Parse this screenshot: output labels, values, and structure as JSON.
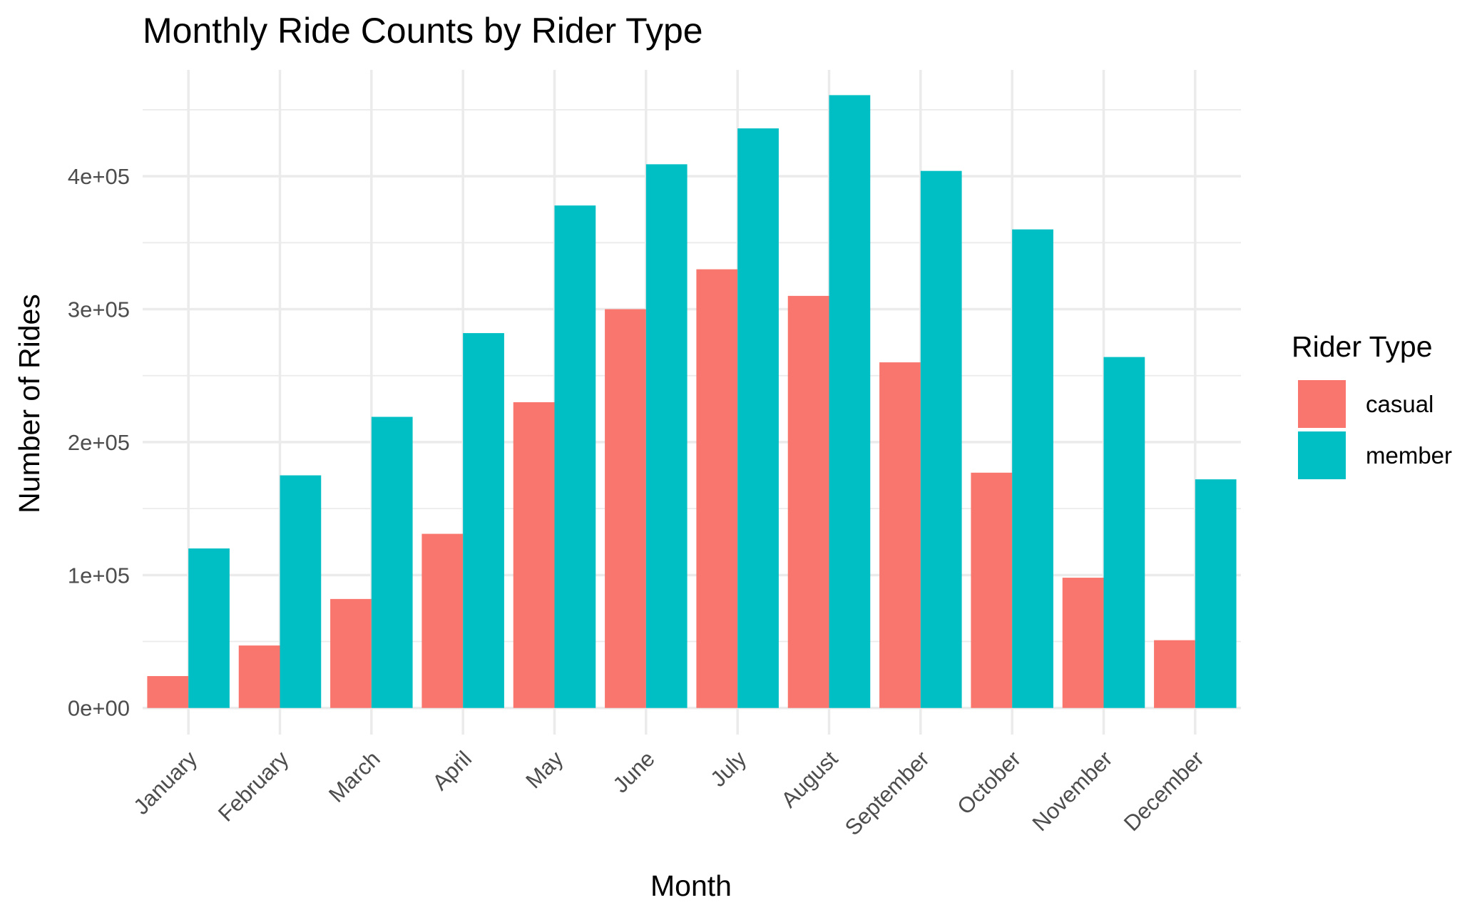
{
  "chart_data": {
    "type": "bar",
    "title": "Monthly Ride Counts by Rider Type",
    "xlabel": "Month",
    "ylabel": "Number of Rides",
    "categories": [
      "January",
      "February",
      "March",
      "April",
      "May",
      "June",
      "July",
      "August",
      "September",
      "October",
      "November",
      "December"
    ],
    "series": [
      {
        "name": "casual",
        "color": "#F8766D",
        "values": [
          24000,
          47000,
          82000,
          131000,
          230000,
          300000,
          330000,
          310000,
          260000,
          177000,
          98000,
          51000
        ]
      },
      {
        "name": "member",
        "color": "#00BFC4",
        "values": [
          120000,
          175000,
          219000,
          282000,
          378000,
          409000,
          436000,
          461000,
          404000,
          360000,
          264000,
          172000
        ]
      }
    ],
    "ylim": [
      -20000,
      480000
    ],
    "yticks": [
      0,
      100000,
      200000,
      300000,
      400000
    ],
    "ytick_labels": [
      "0e+00",
      "1e+05",
      "2e+05",
      "3e+05",
      "4e+05"
    ],
    "grid": true,
    "legend": {
      "title": "Rider Type",
      "position": "right"
    }
  }
}
